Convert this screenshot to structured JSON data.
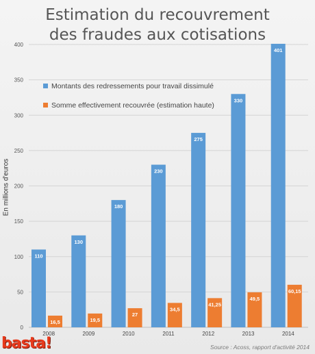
{
  "chart_data": {
    "type": "bar",
    "title_lines": [
      "Estimation du recouvrement",
      "des fraudes aux cotisations"
    ],
    "ylabel": "En millions d'euros",
    "xlabel": "",
    "ylim": [
      0,
      400
    ],
    "yticks": [
      0,
      50,
      100,
      150,
      200,
      250,
      300,
      350,
      400
    ],
    "grid": true,
    "legend_position": "top-left",
    "categories": [
      "2008",
      "2009",
      "2010",
      "2011",
      "2012",
      "2013",
      "2014"
    ],
    "series": [
      {
        "name": "Montants des redressements pour travail dissimulé",
        "color": "#5b9bd5",
        "values": [
          110,
          130,
          180,
          230,
          275,
          330,
          401
        ],
        "labels": [
          "110",
          "130",
          "180",
          "230",
          "275",
          "330",
          "401"
        ]
      },
      {
        "name": "Somme effectivement recouvrée (estimation haute)",
        "color": "#ed7d31",
        "values": [
          16.5,
          19.5,
          27,
          34.5,
          41.25,
          49.5,
          60.15
        ],
        "labels": [
          "16,5",
          "19,5",
          "27",
          "34,5",
          "41,25",
          "49,5",
          "60,15"
        ]
      }
    ]
  },
  "logo_text": "basta!",
  "source": "Source : Acoss, rapport d'activité 2014"
}
